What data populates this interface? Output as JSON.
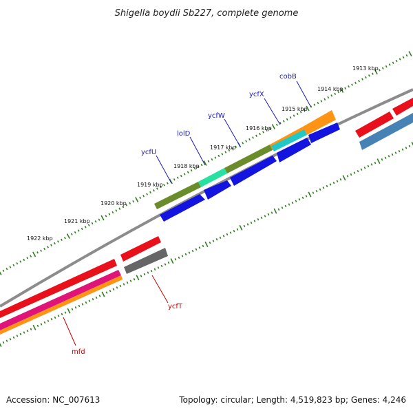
{
  "title": "Shigella boydii Sb227, complete genome",
  "footer": {
    "accession": "Accession: NC_007613",
    "topology": "Topology: circular; Length: 4,519,823 bp; Genes: 4,246"
  },
  "scale": {
    "unit": "kbp",
    "labels": [
      "1913 kbp",
      "1914 kbp",
      "1915 kbp",
      "1916 kbp",
      "1917 kbp",
      "1918 kbp",
      "1919 kbp",
      "1920 kbp",
      "1921 kbp",
      "1922 kbp"
    ]
  },
  "gene_labels": {
    "top": [
      "cobB",
      "ycfX",
      "ycfW",
      "lolD",
      "ycfU"
    ],
    "bottom": [
      "ycfT",
      "mfd"
    ]
  },
  "colors": {
    "backbone": "#8c8c8c",
    "tick": "#2e7d1e",
    "label_blue": "#1a1ab4",
    "label_red": "#c80000",
    "red": "#e8101a",
    "blue": "#1414e0",
    "olive": "#6b8c2a",
    "green_light": "#28e0a0",
    "cyan": "#22c8c8",
    "orange": "#ff9414",
    "magenta": "#e01478",
    "grey_dark": "#666666",
    "steel": "#4682b4"
  }
}
